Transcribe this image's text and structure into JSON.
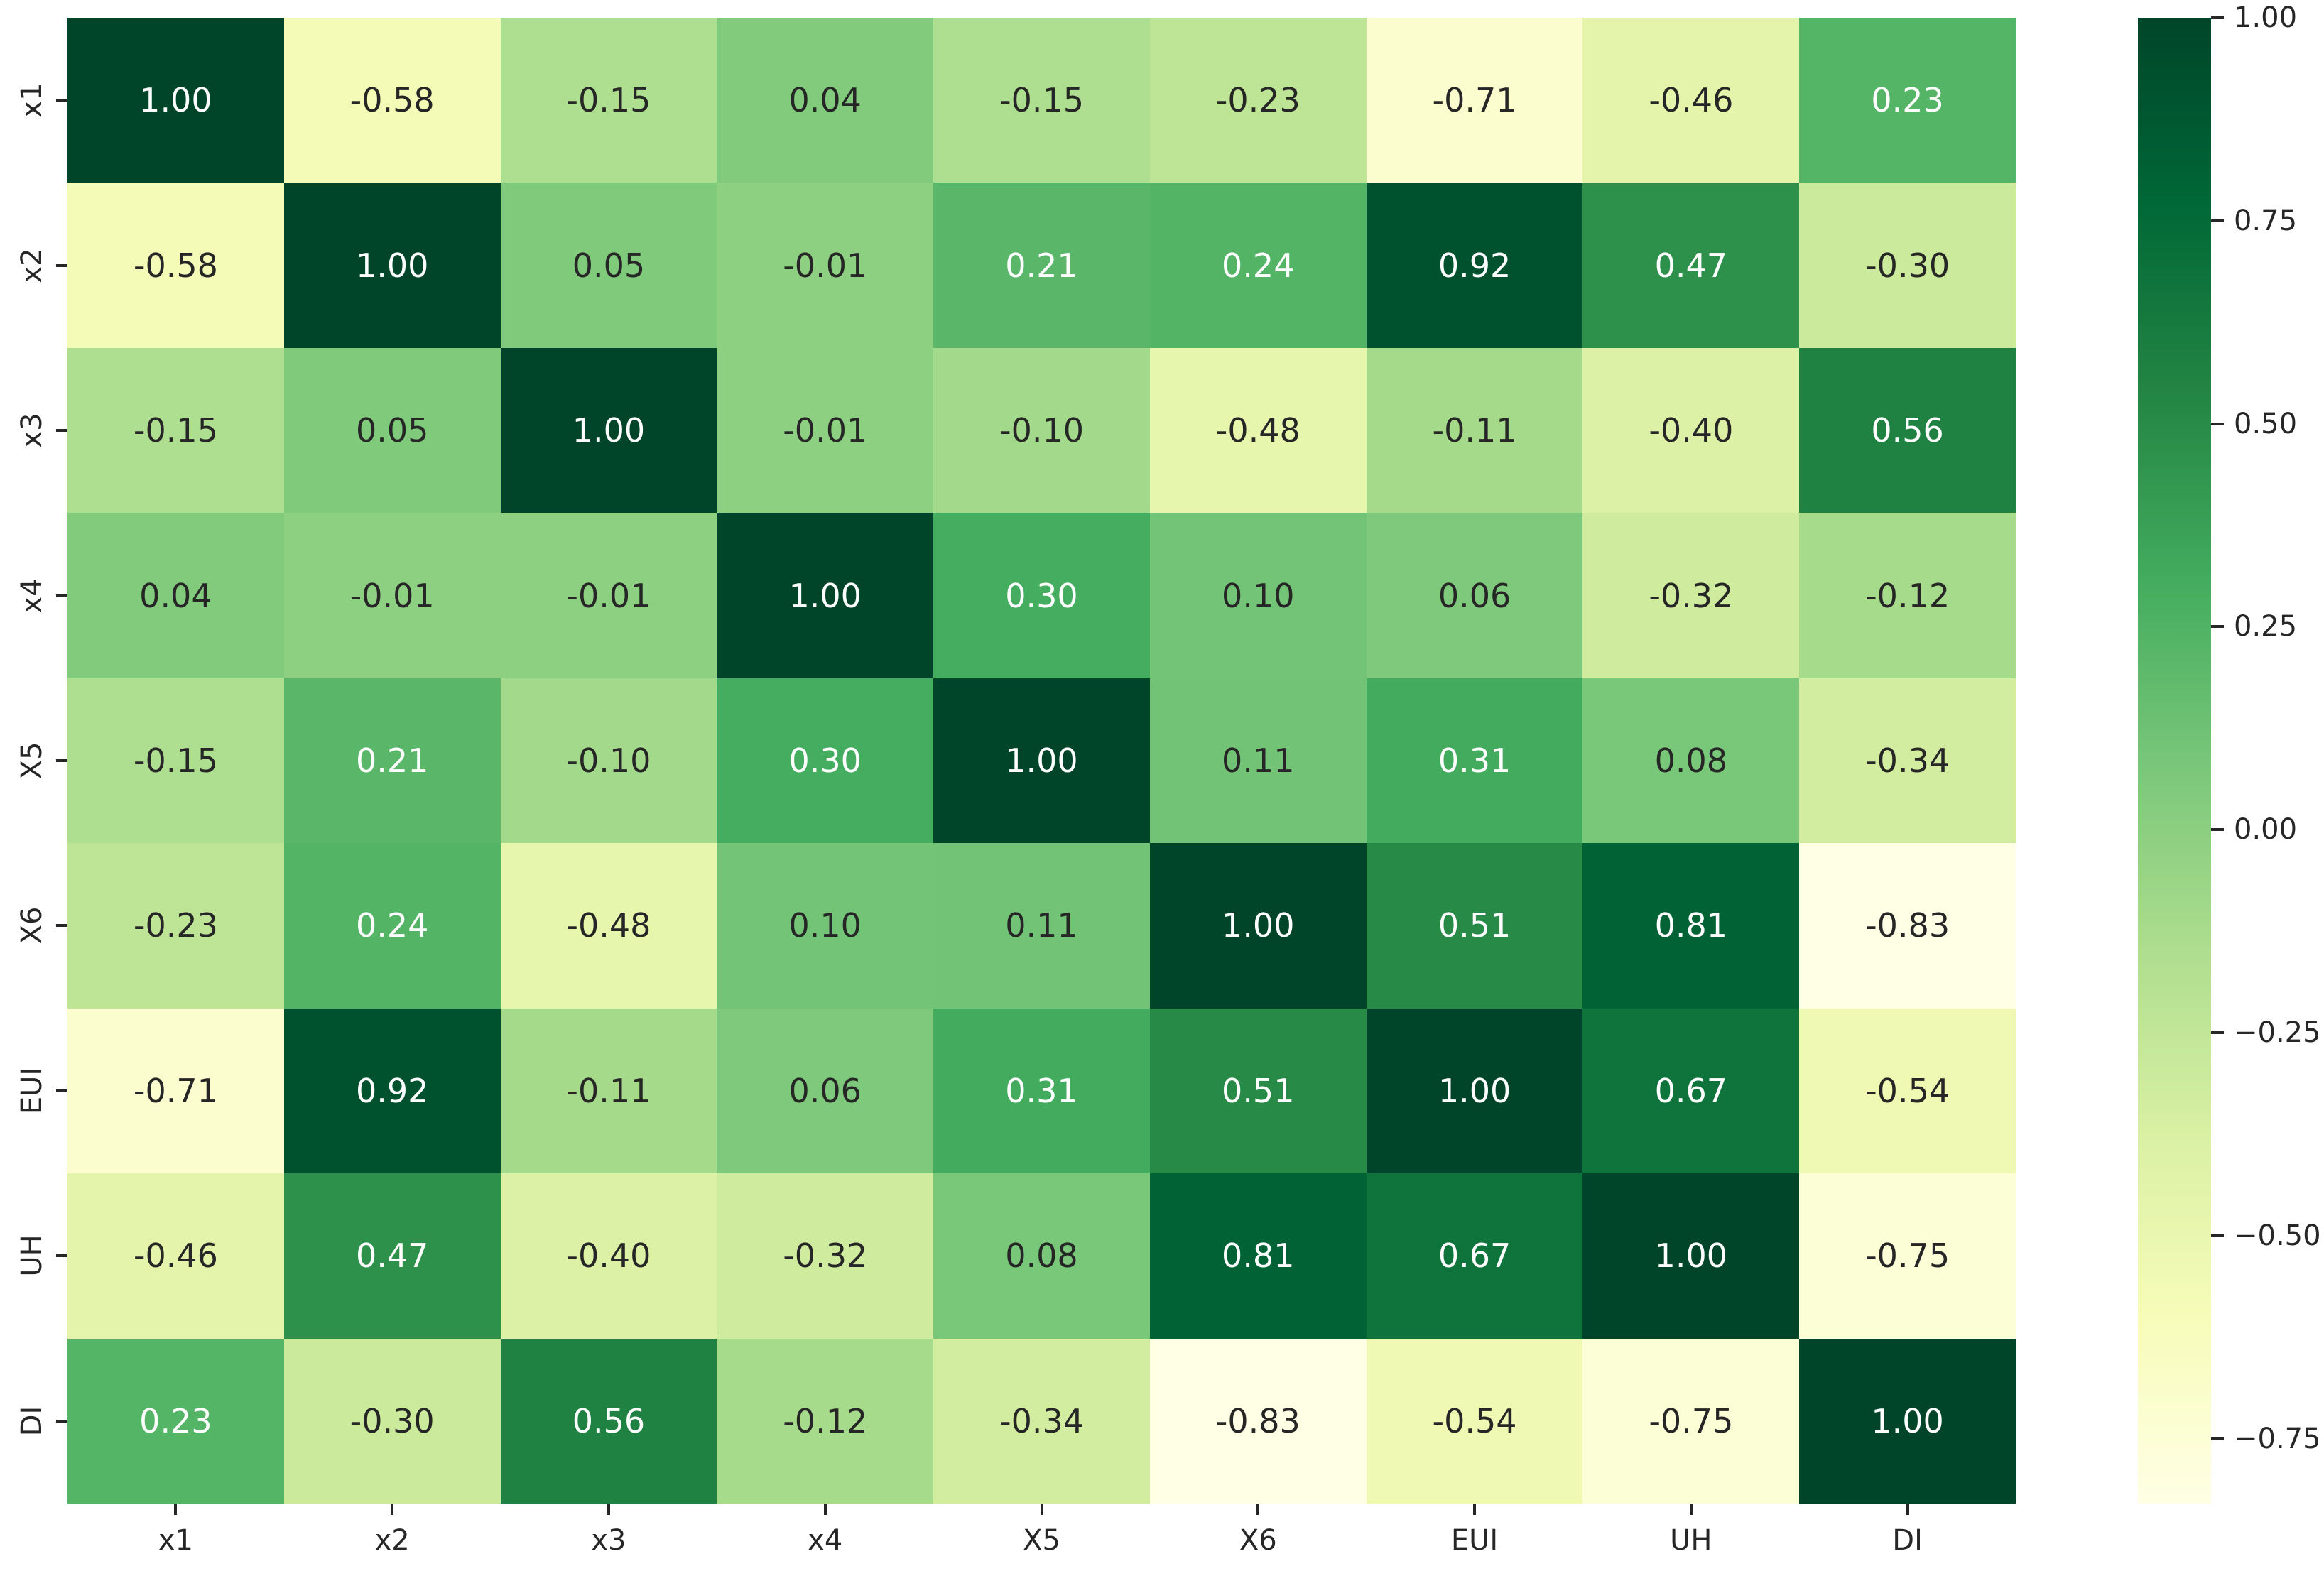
{
  "figure": {
    "background": "#ffffff"
  },
  "chart_data": {
    "type": "heatmap",
    "title": "",
    "xlabel": "",
    "ylabel": "",
    "x_labels": [
      "x1",
      "x2",
      "x3",
      "x4",
      "X5",
      "X6",
      "EUI",
      "UH",
      "DI"
    ],
    "y_labels": [
      "x1",
      "x2",
      "x3",
      "x4",
      "X5",
      "X6",
      "EUI",
      "UH",
      "DI"
    ],
    "matrix": [
      [
        1.0,
        -0.58,
        -0.15,
        0.04,
        -0.15,
        -0.23,
        -0.71,
        -0.46,
        0.23
      ],
      [
        -0.58,
        1.0,
        0.05,
        -0.01,
        0.21,
        0.24,
        0.92,
        0.47,
        -0.3
      ],
      [
        -0.15,
        0.05,
        1.0,
        -0.01,
        -0.1,
        -0.48,
        -0.11,
        -0.4,
        0.56
      ],
      [
        0.04,
        -0.01,
        -0.01,
        1.0,
        0.3,
        0.1,
        0.06,
        -0.32,
        -0.12
      ],
      [
        -0.15,
        0.21,
        -0.1,
        0.3,
        1.0,
        0.11,
        0.31,
        0.08,
        -0.34
      ],
      [
        -0.23,
        0.24,
        -0.48,
        0.1,
        0.11,
        1.0,
        0.51,
        0.81,
        -0.83
      ],
      [
        -0.71,
        0.92,
        -0.11,
        0.06,
        0.31,
        0.51,
        1.0,
        0.67,
        -0.54
      ],
      [
        -0.46,
        0.47,
        -0.4,
        -0.32,
        0.08,
        0.81,
        0.67,
        1.0,
        -0.75
      ],
      [
        0.23,
        -0.3,
        0.56,
        -0.12,
        -0.34,
        -0.83,
        -0.54,
        -0.75,
        1.0
      ]
    ],
    "value_decimals": 2,
    "vmin": -0.83,
    "vmax": 1.0,
    "colormap": {
      "name": "YlGn",
      "anchors": [
        "#ffffe5",
        "#f7fcb9",
        "#d9f0a3",
        "#addd8e",
        "#78c679",
        "#41ab5d",
        "#238443",
        "#006837",
        "#004529"
      ]
    },
    "annotation_colors": {
      "on_light": "#262626",
      "on_dark": "#ffffff"
    },
    "tick_color": "#262626",
    "grid": false,
    "legend_position": "right-colorbar",
    "colorbar_ticks": [
      {
        "value": 1.0,
        "label": "1.00"
      },
      {
        "value": 0.75,
        "label": "0.75"
      },
      {
        "value": 0.5,
        "label": "0.50"
      },
      {
        "value": 0.25,
        "label": "0.25"
      },
      {
        "value": 0.0,
        "label": "0.00"
      },
      {
        "value": -0.25,
        "label": "−0.25"
      },
      {
        "value": -0.5,
        "label": "−0.50"
      },
      {
        "value": -0.75,
        "label": "−0.75"
      }
    ]
  }
}
